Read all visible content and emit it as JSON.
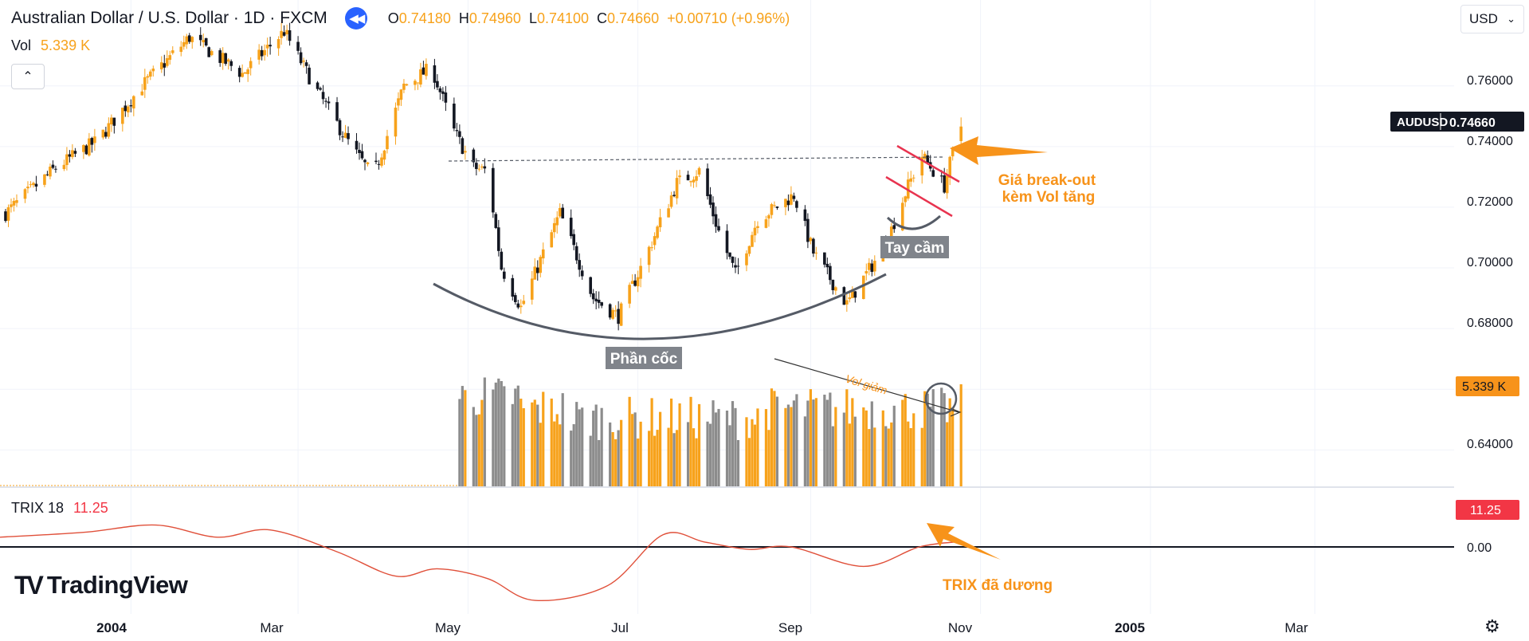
{
  "header": {
    "symbol": "Australian Dollar / U.S. Dollar · 1D · FXCM",
    "ohlc": {
      "o_label": "O",
      "o": "0.74180",
      "h_label": "H",
      "h": "0.74960",
      "l_label": "L",
      "l": "0.74100",
      "c_label": "C",
      "c": "0.74660",
      "change": "+0.00710 (+0.96%)"
    }
  },
  "volume_legend": {
    "label": "Vol",
    "value": "5.339 K"
  },
  "currency_selector": {
    "value": "USD"
  },
  "trix_legend": {
    "label": "TRIX 18",
    "value": "11.25"
  },
  "branding": {
    "name": "TradingView"
  },
  "price_scale": {
    "labels": [
      "0.76000",
      "0.74000",
      "0.72000",
      "0.70000",
      "0.68000",
      "0.64000"
    ],
    "price_label_symbol": "AUDUSD",
    "price_label_value": "0.74660",
    "volume_label": "5.339 K",
    "trix_label": "11.25",
    "trix_zero": "0.00"
  },
  "time_scale": {
    "labels": [
      "2004",
      "Mar",
      "May",
      "Jul",
      "Sep",
      "Nov",
      "2005",
      "Mar"
    ]
  },
  "annotations": {
    "cup": "Phần cốc",
    "handle": "Tay cầm",
    "breakout_1": "Giá break-out",
    "breakout_2": "kèm Vol tăng",
    "vol_down": "Vol giảm",
    "trix_positive": "TRIX đã dương"
  },
  "colors": {
    "up": "#f7a21b",
    "down": "#131722",
    "vol_down": "#8c8c8c",
    "trix": "#e0503a",
    "accent": "#f7931a",
    "red_line": "#e8334f",
    "arc": "#555b66"
  },
  "chart_data": {
    "type": "candlestick",
    "title": "Australian Dollar / U.S. Dollar · 1D · FXCM",
    "ylim": [
      0.628,
      0.782
    ],
    "x_range": [
      "2003-11-15",
      "2005-04-20"
    ],
    "last_date": "2004-10-25",
    "close_anchors": [
      [
        "2003-11-17",
        0.718
      ],
      [
        "2003-12-05",
        0.733
      ],
      [
        "2003-12-20",
        0.742
      ],
      [
        "2004-01-05",
        0.76
      ],
      [
        "2004-01-22",
        0.776
      ],
      [
        "2004-02-10",
        0.764
      ],
      [
        "2004-02-25",
        0.778
      ],
      [
        "2004-03-08",
        0.758
      ],
      [
        "2004-03-20",
        0.74
      ],
      [
        "2004-03-28",
        0.73
      ],
      [
        "2004-04-08",
        0.76
      ],
      [
        "2004-04-18",
        0.766
      ],
      [
        "2004-04-26",
        0.745
      ],
      [
        "2004-05-03",
        0.733
      ],
      [
        "2004-05-08",
        0.732
      ],
      [
        "2004-05-13",
        0.7
      ],
      [
        "2004-05-20",
        0.687
      ],
      [
        "2004-06-03",
        0.718
      ],
      [
        "2004-06-15",
        0.69
      ],
      [
        "2004-06-24",
        0.684
      ],
      [
        "2004-07-03",
        0.702
      ],
      [
        "2004-07-15",
        0.728
      ],
      [
        "2004-07-23",
        0.732
      ],
      [
        "2004-07-30",
        0.712
      ],
      [
        "2004-08-05",
        0.698
      ],
      [
        "2004-08-13",
        0.716
      ],
      [
        "2004-08-26",
        0.724
      ],
      [
        "2004-09-02",
        0.705
      ],
      [
        "2004-09-14",
        0.688
      ],
      [
        "2004-09-28",
        0.708
      ],
      [
        "2004-10-06",
        0.727
      ],
      [
        "2004-10-11",
        0.737
      ],
      [
        "2004-10-19",
        0.727
      ],
      [
        "2004-10-22",
        0.738
      ],
      [
        "2004-10-25",
        0.7466
      ]
    ],
    "last_candle": {
      "open": 0.7418,
      "high": 0.7496,
      "low": 0.741,
      "close": 0.7466
    },
    "volume": {
      "start_date": "2004-04-28",
      "last_value_k": 5.339,
      "trend": "Vol giảm"
    },
    "trix": {
      "period": 18,
      "last_value": 11.25,
      "points": [
        [
          "2003-11-15",
          20
        ],
        [
          "2003-12-15",
          30
        ],
        [
          "2004-01-10",
          45
        ],
        [
          "2004-02-01",
          20
        ],
        [
          "2004-02-20",
          35
        ],
        [
          "2004-03-15",
          -10
        ],
        [
          "2004-04-05",
          -60
        ],
        [
          "2004-04-20",
          -45
        ],
        [
          "2004-05-08",
          -65
        ],
        [
          "2004-05-25",
          -110
        ],
        [
          "2004-06-20",
          -80
        ],
        [
          "2004-07-10",
          25
        ],
        [
          "2004-07-25",
          10
        ],
        [
          "2004-08-10",
          -5
        ],
        [
          "2004-08-25",
          0
        ],
        [
          "2004-09-20",
          -40
        ],
        [
          "2004-10-10",
          0
        ],
        [
          "2004-10-25",
          11.25
        ]
      ]
    }
  }
}
